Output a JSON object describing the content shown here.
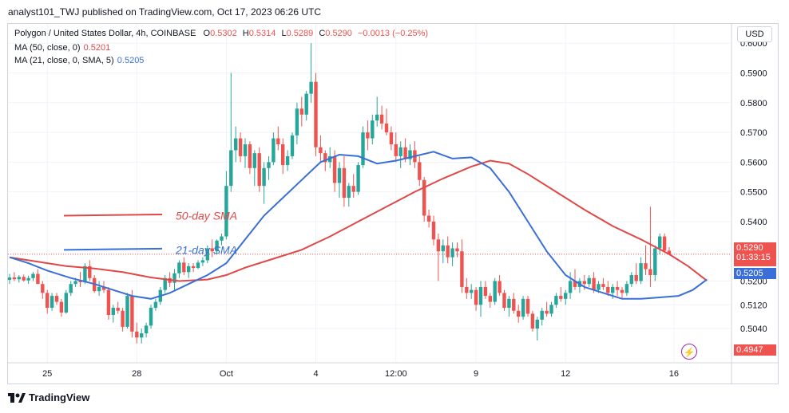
{
  "header": {
    "text": "analyst101_TWJ published on TradingView.com, Oct 17, 2023 06:26 UTC"
  },
  "legend": {
    "line1": {
      "title": "Polygon / United States Dollar, 4h, COINBASE",
      "o_label": "O",
      "o": "0.5302",
      "h_label": "H",
      "h": "0.5314",
      "l_label": "L",
      "l": "0.5289",
      "c_label": "C",
      "c": "0.5290",
      "chg": "−0.0013 (−0.25%)"
    },
    "line2": {
      "label": "MA (50, close, 0)",
      "value": "0.5201"
    },
    "line3": {
      "label": "MA (21, close, 0, SMA, 5)",
      "value": "0.5205"
    }
  },
  "currency_button": "USD",
  "price_tags": {
    "last": "0.5290",
    "countdown": "01:33:15",
    "ma": "0.5205",
    "low": "0.4947"
  },
  "footer_logo": "TradingView",
  "colors": {
    "up": "#26a69a",
    "down": "#ef5350",
    "ma50": "#e04848",
    "ma21": "#3a6fd8"
  },
  "chart_data": {
    "type": "line",
    "chart_style": "candlestick",
    "title": "Polygon / United States Dollar, 4h, COINBASE",
    "y_axis": {
      "position": "right",
      "ticks": [
        "0.6000",
        "0.5900",
        "0.5800",
        "0.5700",
        "0.5600",
        "0.5500",
        "0.5400",
        "0.5200",
        "0.5120",
        "0.5040"
      ],
      "tick_values": [
        0.6,
        0.59,
        0.58,
        0.57,
        0.56,
        0.55,
        0.54,
        0.52,
        0.512,
        0.504
      ],
      "range": [
        0.4925,
        0.6065
      ]
    },
    "x_axis": {
      "ticks": [
        "25",
        "28",
        "Oct",
        "4",
        "12:00",
        "9",
        "12",
        "16"
      ],
      "tick_index": [
        8,
        27,
        46,
        65,
        82,
        99,
        118,
        141
      ]
    },
    "annotations": [
      {
        "text": "50-day SMA",
        "color": "#e04848",
        "value": 0.542
      },
      {
        "text": "21-day SMA",
        "color": "#3a6fd8",
        "value": 0.5305
      }
    ],
    "candles": [
      [
        0.5204,
        0.5224,
        0.519,
        0.5212
      ],
      [
        0.5212,
        0.523,
        0.52,
        0.5206
      ],
      [
        0.5206,
        0.522,
        0.5195,
        0.5214
      ],
      [
        0.5214,
        0.5222,
        0.5198,
        0.5202
      ],
      [
        0.5202,
        0.5218,
        0.519,
        0.521
      ],
      [
        0.521,
        0.523,
        0.52,
        0.5224
      ],
      [
        0.5224,
        0.524,
        0.52,
        0.519
      ],
      [
        0.519,
        0.52,
        0.514,
        0.516
      ],
      [
        0.516,
        0.517,
        0.509,
        0.511
      ],
      [
        0.511,
        0.516,
        0.51,
        0.515
      ],
      [
        0.515,
        0.516,
        0.512,
        0.513
      ],
      [
        0.513,
        0.514,
        0.508,
        0.5094
      ],
      [
        0.5094,
        0.517,
        0.509,
        0.516
      ],
      [
        0.516,
        0.52,
        0.515,
        0.519
      ],
      [
        0.519,
        0.521,
        0.518,
        0.52
      ],
      [
        0.52,
        0.523,
        0.518,
        0.5196
      ],
      [
        0.5196,
        0.526,
        0.519,
        0.525
      ],
      [
        0.525,
        0.527,
        0.52,
        0.521
      ],
      [
        0.521,
        0.522,
        0.516,
        0.5166
      ],
      [
        0.5166,
        0.52,
        0.515,
        0.518
      ],
      [
        0.518,
        0.52,
        0.516,
        0.517
      ],
      [
        0.517,
        0.518,
        0.507,
        0.5086
      ],
      [
        0.5086,
        0.512,
        0.506,
        0.511
      ],
      [
        0.511,
        0.513,
        0.509,
        0.51
      ],
      [
        0.51,
        0.511,
        0.503,
        0.5046
      ],
      [
        0.5046,
        0.516,
        0.504,
        0.515
      ],
      [
        0.515,
        0.517,
        0.501,
        0.503
      ],
      [
        0.503,
        0.506,
        0.499,
        0.501
      ],
      [
        0.501,
        0.504,
        0.499,
        0.5024
      ],
      [
        0.5024,
        0.506,
        0.501,
        0.505
      ],
      [
        0.505,
        0.512,
        0.504,
        0.511
      ],
      [
        0.511,
        0.514,
        0.51,
        0.513
      ],
      [
        0.513,
        0.518,
        0.512,
        0.517
      ],
      [
        0.517,
        0.522,
        0.516,
        0.521
      ],
      [
        0.521,
        0.523,
        0.518,
        0.5194
      ],
      [
        0.5194,
        0.524,
        0.517,
        0.5226
      ],
      [
        0.5226,
        0.527,
        0.521,
        0.5262
      ],
      [
        0.5262,
        0.528,
        0.522,
        0.523
      ],
      [
        0.523,
        0.526,
        0.521,
        0.525
      ],
      [
        0.525,
        0.526,
        0.523,
        0.5244
      ],
      [
        0.5244,
        0.527,
        0.524,
        0.5262
      ],
      [
        0.5262,
        0.528,
        0.525,
        0.527
      ],
      [
        0.527,
        0.532,
        0.526,
        0.531
      ],
      [
        0.531,
        0.534,
        0.528,
        0.53
      ],
      [
        0.53,
        0.534,
        0.529,
        0.5336
      ],
      [
        0.5336,
        0.536,
        0.532,
        0.535
      ],
      [
        0.535,
        0.557,
        0.534,
        0.552
      ],
      [
        0.552,
        0.59,
        0.55,
        0.564
      ],
      [
        0.564,
        0.572,
        0.56,
        0.568
      ],
      [
        0.568,
        0.57,
        0.56,
        0.562
      ],
      [
        0.562,
        0.568,
        0.558,
        0.566
      ],
      [
        0.566,
        0.567,
        0.556,
        0.558
      ],
      [
        0.558,
        0.564,
        0.552,
        0.563
      ],
      [
        0.563,
        0.565,
        0.55,
        0.552
      ],
      [
        0.552,
        0.56,
        0.546,
        0.558
      ],
      [
        0.558,
        0.562,
        0.554,
        0.56
      ],
      [
        0.56,
        0.57,
        0.559,
        0.568
      ],
      [
        0.568,
        0.572,
        0.564,
        0.566
      ],
      [
        0.566,
        0.568,
        0.556,
        0.559
      ],
      [
        0.559,
        0.564,
        0.557,
        0.562
      ],
      [
        0.562,
        0.57,
        0.561,
        0.569
      ],
      [
        0.569,
        0.58,
        0.566,
        0.578
      ],
      [
        0.578,
        0.582,
        0.572,
        0.576
      ],
      [
        0.576,
        0.584,
        0.574,
        0.583
      ],
      [
        0.583,
        0.6,
        0.58,
        0.587
      ],
      [
        0.587,
        0.59,
        0.562,
        0.565
      ],
      [
        0.565,
        0.569,
        0.56,
        0.563
      ],
      [
        0.563,
        0.564,
        0.557,
        0.56
      ],
      [
        0.56,
        0.565,
        0.558,
        0.562
      ],
      [
        0.562,
        0.564,
        0.55,
        0.553
      ],
      [
        0.553,
        0.56,
        0.548,
        0.558
      ],
      [
        0.558,
        0.562,
        0.545,
        0.548
      ],
      [
        0.548,
        0.553,
        0.545,
        0.552
      ],
      [
        0.552,
        0.556,
        0.548,
        0.55
      ],
      [
        0.55,
        0.56,
        0.549,
        0.559
      ],
      [
        0.559,
        0.572,
        0.558,
        0.57
      ],
      [
        0.57,
        0.574,
        0.564,
        0.568
      ],
      [
        0.568,
        0.576,
        0.566,
        0.574
      ],
      [
        0.574,
        0.582,
        0.572,
        0.576
      ],
      [
        0.576,
        0.579,
        0.571,
        0.573
      ],
      [
        0.573,
        0.578,
        0.569,
        0.57
      ],
      [
        0.57,
        0.572,
        0.564,
        0.566
      ],
      [
        0.566,
        0.57,
        0.56,
        0.562
      ],
      [
        0.562,
        0.567,
        0.558,
        0.565
      ],
      [
        0.565,
        0.568,
        0.56,
        0.561
      ],
      [
        0.561,
        0.566,
        0.559,
        0.564
      ],
      [
        0.564,
        0.567,
        0.558,
        0.56
      ],
      [
        0.56,
        0.562,
        0.552,
        0.554
      ],
      [
        0.554,
        0.555,
        0.54,
        0.542
      ],
      [
        0.542,
        0.544,
        0.538,
        0.54
      ],
      [
        0.54,
        0.542,
        0.532,
        0.534
      ],
      [
        0.534,
        0.536,
        0.52,
        0.53
      ],
      [
        0.53,
        0.534,
        0.526,
        0.532
      ],
      [
        0.532,
        0.535,
        0.526,
        0.528
      ],
      [
        0.528,
        0.533,
        0.525,
        0.531
      ],
      [
        0.531,
        0.533,
        0.528,
        0.53
      ],
      [
        0.53,
        0.534,
        0.516,
        0.518
      ],
      [
        0.518,
        0.521,
        0.514,
        0.516
      ],
      [
        0.516,
        0.519,
        0.514,
        0.517
      ],
      [
        0.517,
        0.518,
        0.51,
        0.512
      ],
      [
        0.512,
        0.52,
        0.508,
        0.518
      ],
      [
        0.518,
        0.52,
        0.514,
        0.515
      ],
      [
        0.515,
        0.516,
        0.511,
        0.513
      ],
      [
        0.513,
        0.521,
        0.512,
        0.52
      ],
      [
        0.52,
        0.522,
        0.515,
        0.516
      ],
      [
        0.516,
        0.517,
        0.51,
        0.511
      ],
      [
        0.511,
        0.515,
        0.508,
        0.514
      ],
      [
        0.514,
        0.516,
        0.509,
        0.51
      ],
      [
        0.51,
        0.512,
        0.506,
        0.508
      ],
      [
        0.508,
        0.515,
        0.507,
        0.514
      ],
      [
        0.514,
        0.515,
        0.508,
        0.509
      ],
      [
        0.509,
        0.51,
        0.503,
        0.504
      ],
      [
        0.504,
        0.508,
        0.5,
        0.507
      ],
      [
        0.507,
        0.511,
        0.505,
        0.51
      ],
      [
        0.51,
        0.513,
        0.508,
        0.509
      ],
      [
        0.509,
        0.513,
        0.508,
        0.512
      ],
      [
        0.512,
        0.516,
        0.511,
        0.515
      ],
      [
        0.515,
        0.518,
        0.513,
        0.514
      ],
      [
        0.514,
        0.517,
        0.512,
        0.516
      ],
      [
        0.516,
        0.523,
        0.514,
        0.52
      ],
      [
        0.52,
        0.524,
        0.517,
        0.518
      ],
      [
        0.518,
        0.521,
        0.516,
        0.52
      ],
      [
        0.52,
        0.522,
        0.517,
        0.519
      ],
      [
        0.519,
        0.522,
        0.518,
        0.521
      ],
      [
        0.521,
        0.523,
        0.516,
        0.517
      ],
      [
        0.517,
        0.52,
        0.516,
        0.519
      ],
      [
        0.519,
        0.521,
        0.517,
        0.518
      ],
      [
        0.518,
        0.52,
        0.515,
        0.516
      ],
      [
        0.516,
        0.519,
        0.514,
        0.518
      ],
      [
        0.518,
        0.52,
        0.515,
        0.517
      ],
      [
        0.517,
        0.518,
        0.514,
        0.516
      ],
      [
        0.516,
        0.52,
        0.515,
        0.519
      ],
      [
        0.519,
        0.523,
        0.518,
        0.522
      ],
      [
        0.522,
        0.526,
        0.519,
        0.52
      ],
      [
        0.52,
        0.528,
        0.519,
        0.526
      ],
      [
        0.526,
        0.532,
        0.522,
        0.524
      ],
      [
        0.524,
        0.545,
        0.518,
        0.522
      ],
      [
        0.522,
        0.532,
        0.52,
        0.531
      ],
      [
        0.531,
        0.536,
        0.529,
        0.535
      ],
      [
        0.535,
        0.536,
        0.53,
        0.5302
      ],
      [
        0.5302,
        0.5314,
        0.5289,
        0.529
      ]
    ],
    "ma21": [
      [
        0,
        0.528
      ],
      [
        4,
        0.526
      ],
      [
        8,
        0.5235
      ],
      [
        13,
        0.521
      ],
      [
        18,
        0.519
      ],
      [
        22,
        0.517
      ],
      [
        26,
        0.515
      ],
      [
        30,
        0.514
      ],
      [
        34,
        0.516
      ],
      [
        38,
        0.519
      ],
      [
        42,
        0.522
      ],
      [
        46,
        0.526
      ],
      [
        50,
        0.534
      ],
      [
        54,
        0.542
      ],
      [
        58,
        0.548
      ],
      [
        62,
        0.554
      ],
      [
        66,
        0.56
      ],
      [
        70,
        0.5625
      ],
      [
        74,
        0.562
      ],
      [
        78,
        0.5595
      ],
      [
        82,
        0.5605
      ],
      [
        86,
        0.562
      ],
      [
        90,
        0.5635
      ],
      [
        94,
        0.5612
      ],
      [
        98,
        0.5616
      ],
      [
        102,
        0.558
      ],
      [
        106,
        0.55
      ],
      [
        110,
        0.54
      ],
      [
        114,
        0.53
      ],
      [
        118,
        0.522
      ],
      [
        122,
        0.518
      ],
      [
        126,
        0.516
      ],
      [
        130,
        0.514
      ],
      [
        134,
        0.514
      ],
      [
        138,
        0.5145
      ],
      [
        142,
        0.515
      ],
      [
        145,
        0.517
      ],
      [
        148,
        0.5205
      ]
    ],
    "ma50": [
      [
        0,
        0.528
      ],
      [
        6,
        0.5265
      ],
      [
        12,
        0.525
      ],
      [
        18,
        0.5242
      ],
      [
        24,
        0.523
      ],
      [
        30,
        0.5212
      ],
      [
        36,
        0.52
      ],
      [
        42,
        0.5205
      ],
      [
        46,
        0.522
      ],
      [
        50,
        0.5245
      ],
      [
        56,
        0.5275
      ],
      [
        62,
        0.5305
      ],
      [
        68,
        0.535
      ],
      [
        74,
        0.54
      ],
      [
        80,
        0.545
      ],
      [
        86,
        0.55
      ],
      [
        92,
        0.5545
      ],
      [
        98,
        0.5585
      ],
      [
        102,
        0.5605
      ],
      [
        106,
        0.5595
      ],
      [
        110,
        0.556
      ],
      [
        116,
        0.55
      ],
      [
        122,
        0.544
      ],
      [
        128,
        0.5385
      ],
      [
        134,
        0.534
      ],
      [
        140,
        0.529
      ],
      [
        144,
        0.525
      ],
      [
        148,
        0.5201
      ]
    ]
  }
}
